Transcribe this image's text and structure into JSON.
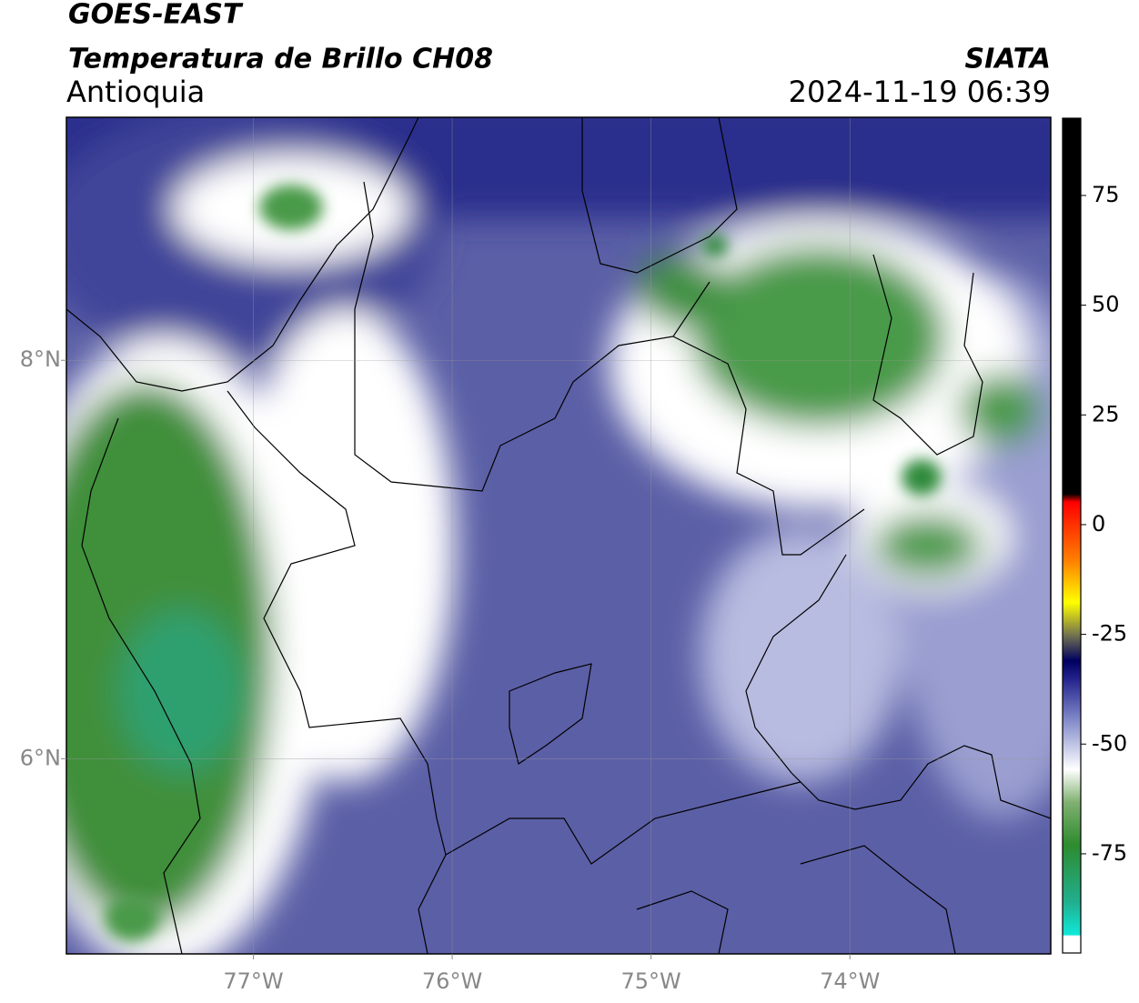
{
  "header": {
    "title": "GOES-EAST",
    "subtitle": "Temperatura de Brillo CH08",
    "region": "Antioquia",
    "source": "SIATA",
    "datetime": "2024-11-19 06:39"
  },
  "map": {
    "lonlim": [
      -77.94,
      -72.99
    ],
    "latlim": [
      5.02,
      9.22
    ],
    "lon_ticks": [
      {
        "value": -77,
        "label": "77°W"
      },
      {
        "value": -76,
        "label": "76°W"
      },
      {
        "value": -75,
        "label": "75°W"
      },
      {
        "value": -74,
        "label": "74°W"
      }
    ],
    "lat_ticks": [
      {
        "value": 8,
        "label": "8°N"
      },
      {
        "value": 6,
        "label": "6°N"
      }
    ]
  },
  "colorbar": {
    "lim": [
      -97.6,
      92.6
    ],
    "ticks": [
      75,
      50,
      25,
      0,
      -25,
      -50,
      -75
    ]
  }
}
